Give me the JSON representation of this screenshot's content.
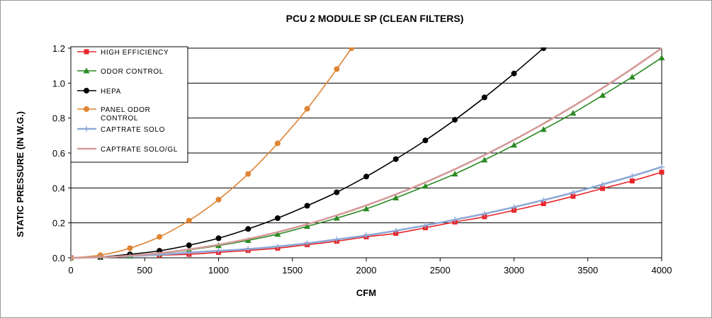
{
  "chart_data": {
    "type": "line",
    "title": "PCU 2 MODULE SP (CLEAN FILTERS)",
    "xlabel": "CFM",
    "ylabel": "STATIC PRESSURE (IN W.G.)",
    "xlim": [
      0,
      4000
    ],
    "ylim": [
      0,
      1.2
    ],
    "xticks": [
      "0",
      "500",
      "1000",
      "1500",
      "2000",
      "2500",
      "3000",
      "3500",
      "4000"
    ],
    "yticks": [
      "0.0",
      "0.2",
      "0.4",
      "0.6",
      "0.8",
      "1.0",
      "1.2"
    ],
    "grid": "horizontal",
    "legend_position": "top-left",
    "series": [
      {
        "name": "HIGH EFFICIENCY",
        "name_lines": [
          "HIGH EFFICIENCY"
        ],
        "color": "#e8262b",
        "marker": "square",
        "x": [
          0,
          200,
          400,
          600,
          800,
          1000,
          1200,
          1400,
          1600,
          1800,
          2000,
          2200,
          2400,
          2600,
          2800,
          3000,
          3200,
          3400,
          3600,
          3800,
          4000
        ],
        "values": [
          0.0,
          0.003,
          0.01,
          0.015,
          0.02,
          0.031,
          0.042,
          0.055,
          0.075,
          0.095,
          0.12,
          0.14,
          0.172,
          0.205,
          0.235,
          0.272,
          0.31,
          0.352,
          0.397,
          0.44,
          0.49
        ]
      },
      {
        "name": "ODOR CONTROL",
        "name_lines": [
          "ODOR CONTROL"
        ],
        "color": "#2a8a22",
        "marker": "triangle",
        "x": [
          0,
          200,
          400,
          600,
          800,
          1000,
          1200,
          1400,
          1600,
          1800,
          2000,
          2200,
          2400,
          2600,
          2800,
          3000,
          3200,
          3400,
          3600,
          3800,
          4000
        ],
        "values": [
          0.0,
          0.003,
          0.01,
          0.025,
          0.045,
          0.07,
          0.1,
          0.135,
          0.18,
          0.227,
          0.28,
          0.343,
          0.41,
          0.48,
          0.56,
          0.645,
          0.735,
          0.828,
          0.93,
          1.035,
          1.145
        ]
      },
      {
        "name": "HEPA",
        "name_lines": [
          "HEPA"
        ],
        "color": "#000000",
        "marker": "circle",
        "x": [
          0,
          200,
          400,
          600,
          800,
          1000,
          1200,
          1400,
          1600,
          1800,
          2000,
          2200,
          2400,
          2600,
          2800,
          3000,
          3200
        ],
        "values": [
          0.0,
          0.005,
          0.02,
          0.04,
          0.072,
          0.112,
          0.165,
          0.227,
          0.298,
          0.375,
          0.465,
          0.565,
          0.672,
          0.79,
          0.918,
          1.055,
          1.2
        ]
      },
      {
        "name": "PANEL ODOR CONTROL",
        "name_lines": [
          "PANEL ODOR",
          "CONTROL"
        ],
        "color": "#de8433",
        "marker": "circle",
        "x": [
          0,
          200,
          400,
          600,
          800,
          1000,
          1200,
          1400,
          1600,
          1800,
          1900
        ],
        "values": [
          0.0,
          0.015,
          0.055,
          0.12,
          0.213,
          0.333,
          0.48,
          0.655,
          0.853,
          1.08,
          1.2
        ]
      },
      {
        "name": "CAPTRATE SOLO",
        "name_lines": [
          "CAPTRATE SOLO"
        ],
        "color": "#8da9d6",
        "marker": "plus",
        "x": [
          0,
          200,
          400,
          600,
          800,
          1000,
          1200,
          1400,
          1600,
          1800,
          2000,
          2200,
          2400,
          2600,
          2800,
          3000,
          3200,
          3400,
          3600,
          3800,
          4000
        ],
        "values": [
          0.0,
          0.003,
          0.01,
          0.018,
          0.03,
          0.04,
          0.05,
          0.065,
          0.083,
          0.105,
          0.128,
          0.155,
          0.185,
          0.218,
          0.252,
          0.29,
          0.33,
          0.373,
          0.42,
          0.468,
          0.52
        ]
      },
      {
        "name": "CAPTRATE SOLO/GL",
        "name_lines": [
          "CAPTRATE SOLO/GL"
        ],
        "color": "#d39a98",
        "marker": "none",
        "x": [
          0,
          200,
          400,
          600,
          800,
          1000,
          1200,
          1400,
          1600,
          1800,
          2000,
          2200,
          2400,
          2600,
          2800,
          3000,
          3200,
          3400,
          3600,
          3800,
          4000
        ],
        "values": [
          0.0,
          0.003,
          0.012,
          0.027,
          0.048,
          0.075,
          0.108,
          0.147,
          0.192,
          0.243,
          0.3,
          0.363,
          0.432,
          0.507,
          0.588,
          0.675,
          0.768,
          0.867,
          0.972,
          1.083,
          1.2
        ]
      }
    ]
  }
}
